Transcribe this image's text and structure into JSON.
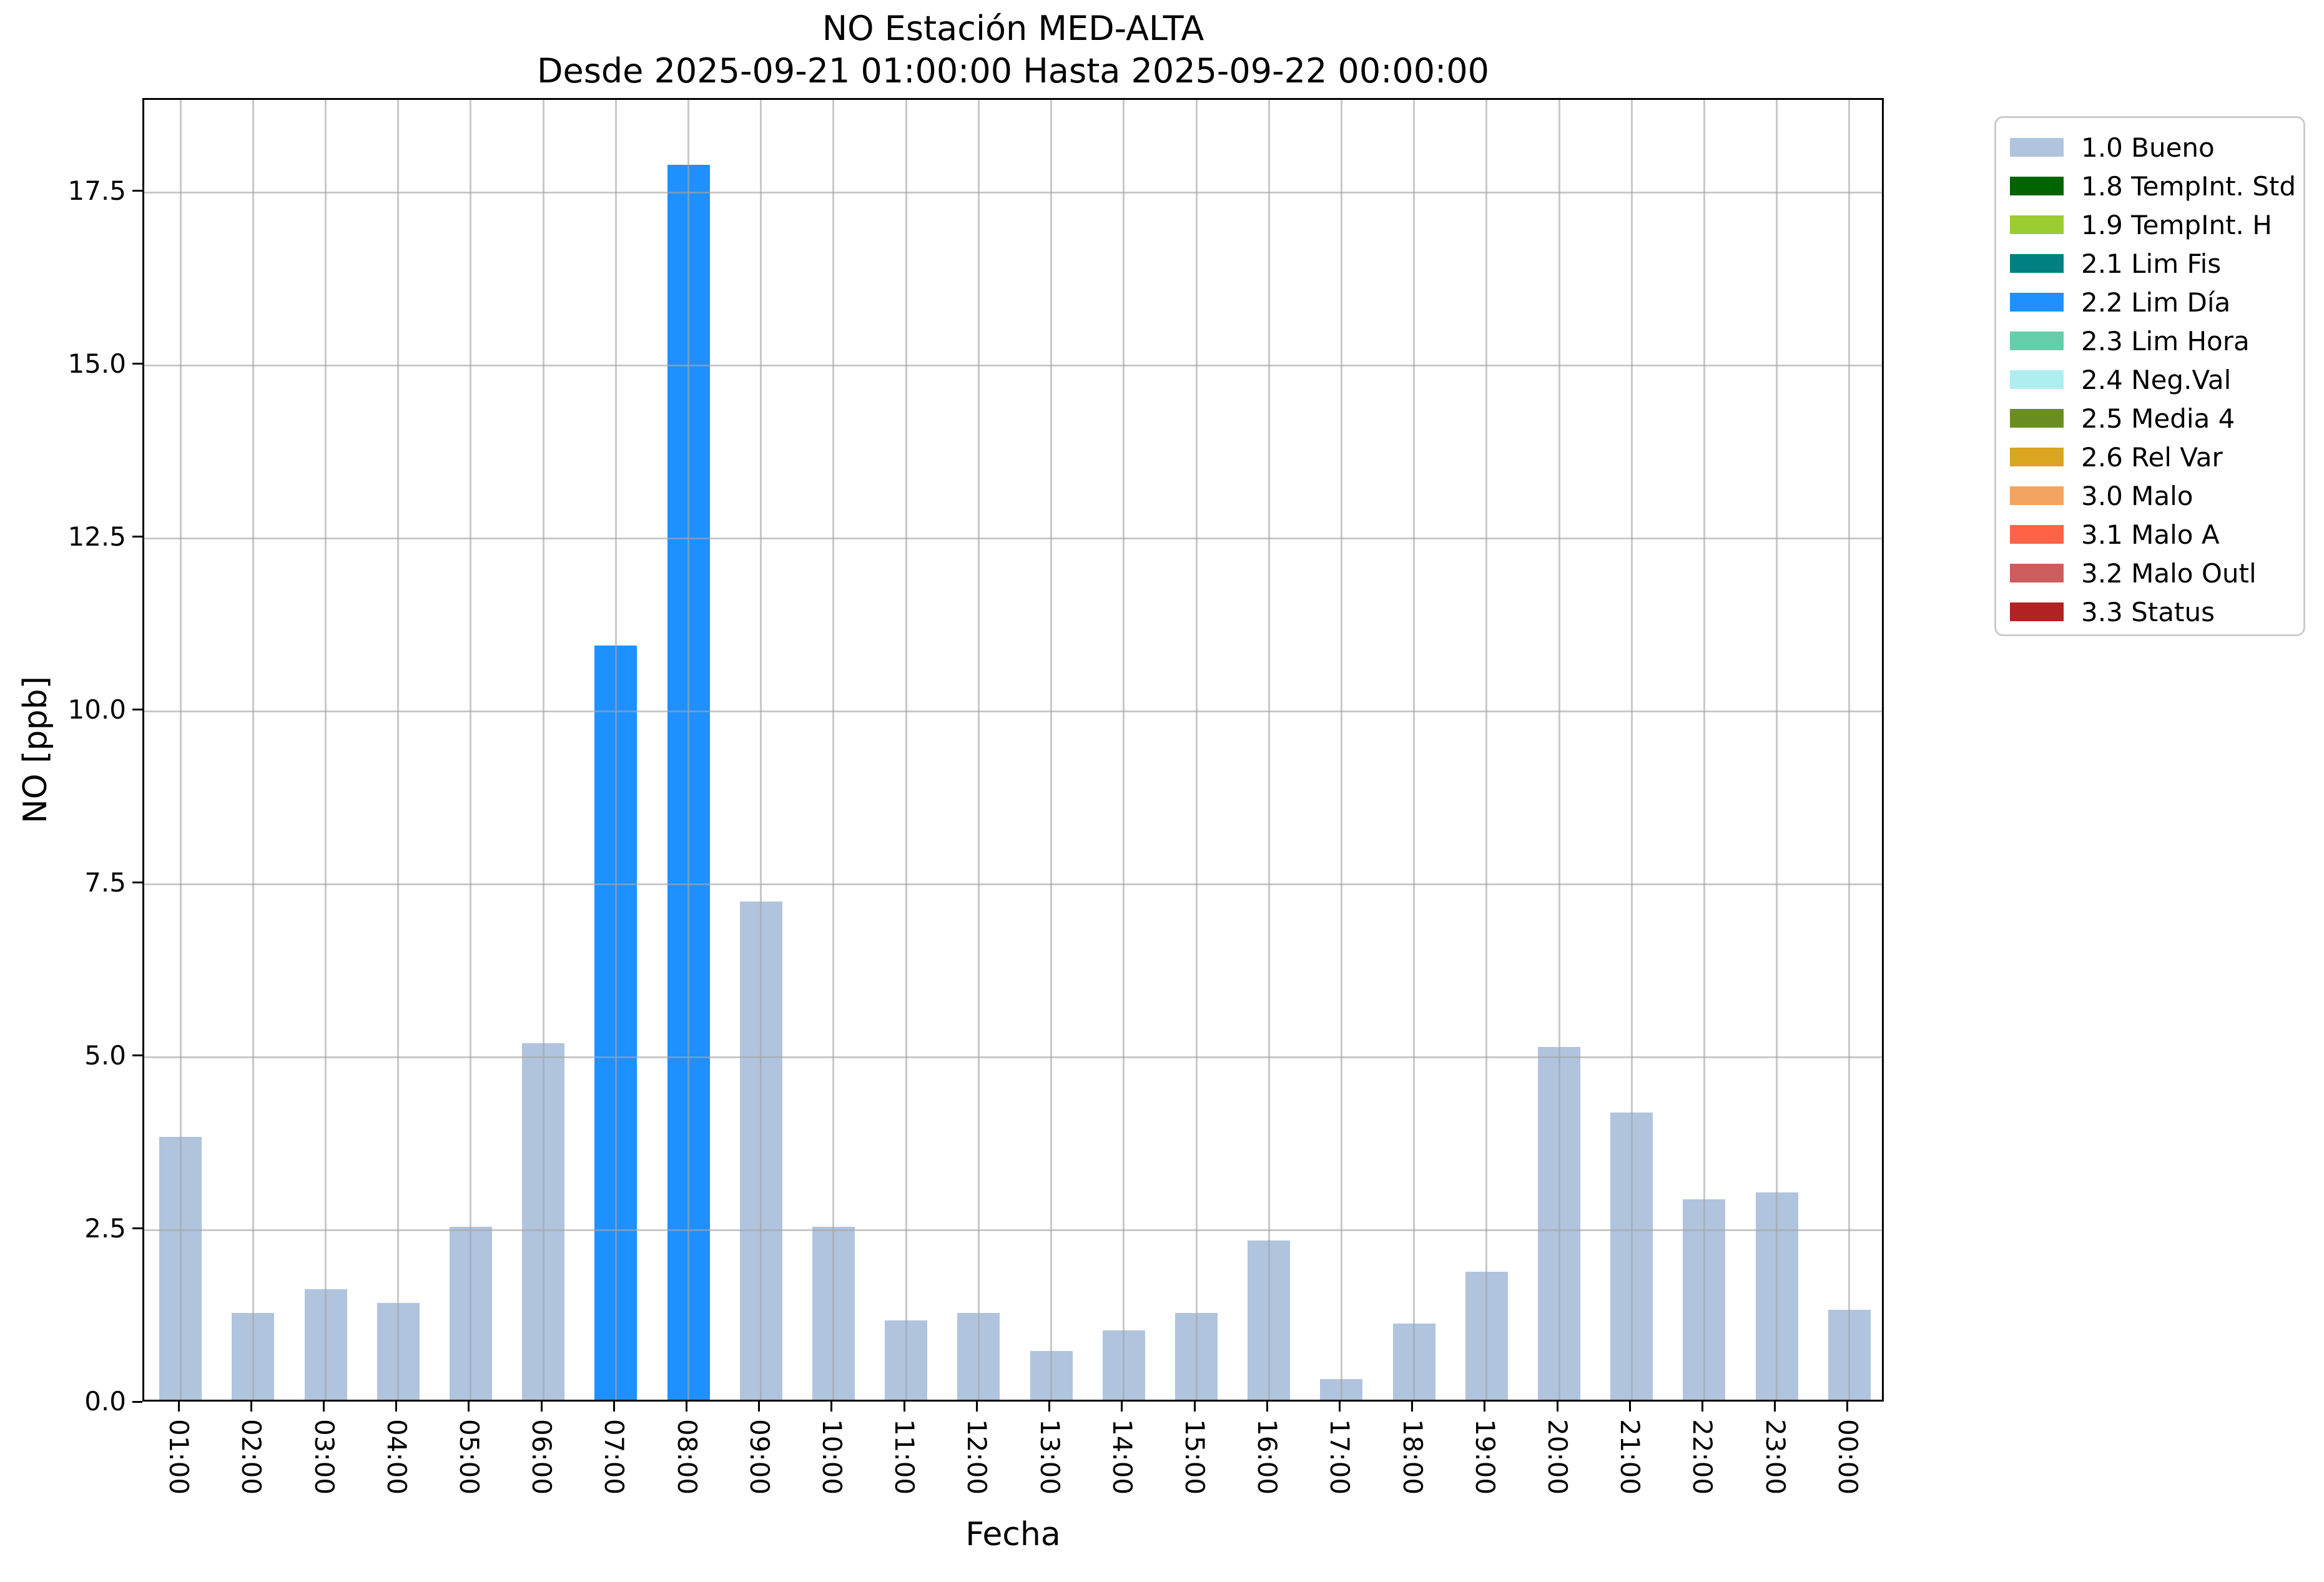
{
  "title": {
    "line1": "NO Estación MED-ALTA",
    "line2": "Desde 2025-09-21 01:00:00 Hasta 2025-09-22 00:00:00"
  },
  "axes": {
    "x_label": "Fecha",
    "y_label": "NO [ppb]",
    "y_ticks": [
      "0.0",
      "2.5",
      "5.0",
      "7.5",
      "10.0",
      "12.5",
      "15.0",
      "17.5"
    ]
  },
  "chart_data": {
    "type": "bar",
    "title": "NO Estación MED-ALTA",
    "subtitle": "Desde 2025-09-21 01:00:00 Hasta 2025-09-22 00:00:00",
    "xlabel": "Fecha",
    "ylabel": "NO [ppb]",
    "categories": [
      "01:00",
      "02:00",
      "03:00",
      "04:00",
      "05:00",
      "06:00",
      "07:00",
      "08:00",
      "09:00",
      "10:00",
      "11:00",
      "12:00",
      "13:00",
      "14:00",
      "15:00",
      "16:00",
      "17:00",
      "18:00",
      "19:00",
      "20:00",
      "21:00",
      "22:00",
      "23:00",
      "00:00"
    ],
    "values": [
      3.8,
      1.25,
      1.6,
      1.4,
      2.5,
      5.15,
      10.9,
      17.85,
      7.2,
      2.5,
      1.15,
      1.25,
      0.7,
      1.0,
      1.25,
      2.3,
      0.3,
      1.1,
      1.85,
      5.1,
      4.15,
      2.9,
      3.0,
      1.3
    ],
    "flags": [
      "1.0",
      "1.0",
      "1.0",
      "1.0",
      "1.0",
      "1.0",
      "2.2",
      "2.2",
      "1.0",
      "1.0",
      "1.0",
      "1.0",
      "1.0",
      "1.0",
      "1.0",
      "1.0",
      "1.0",
      "1.0",
      "1.0",
      "1.0",
      "1.0",
      "1.0",
      "1.0",
      "1.0"
    ],
    "ylim": [
      0,
      18.84
    ],
    "ytick_step": 2.5,
    "grid": true,
    "legend_position": "outside upper right",
    "legend": [
      {
        "code": "1.0",
        "label": "1.0 Bueno",
        "color": "#b0c4de"
      },
      {
        "code": "1.8",
        "label": "1.8 TempInt. Std",
        "color": "#006400"
      },
      {
        "code": "1.9",
        "label": "1.9 TempInt. H",
        "color": "#9acd32"
      },
      {
        "code": "2.1",
        "label": "2.1 Lim Fis",
        "color": "#008080"
      },
      {
        "code": "2.2",
        "label": "2.2 Lim Día",
        "color": "#1e90ff"
      },
      {
        "code": "2.3",
        "label": "2.3 Lim Hora",
        "color": "#66cdaa"
      },
      {
        "code": "2.4",
        "label": "2.4 Neg.Val",
        "color": "#afeeee"
      },
      {
        "code": "2.5",
        "label": "2.5 Media 4",
        "color": "#6b8e23"
      },
      {
        "code": "2.6",
        "label": "2.6 Rel Var",
        "color": "#daa520"
      },
      {
        "code": "3.0",
        "label": "3.0 Malo",
        "color": "#f4a460"
      },
      {
        "code": "3.1",
        "label": "3.1 Malo A",
        "color": "#ff6347"
      },
      {
        "code": "3.2",
        "label": "3.2 Malo Outl",
        "color": "#cd5c5c"
      },
      {
        "code": "3.3",
        "label": "3.3 Status",
        "color": "#b22222"
      }
    ]
  },
  "colors": {
    "background": "#ffffff",
    "axis": "#000000",
    "grid": "#a5a5a5",
    "legend_border": "#cccccc",
    "text": "#000000"
  }
}
